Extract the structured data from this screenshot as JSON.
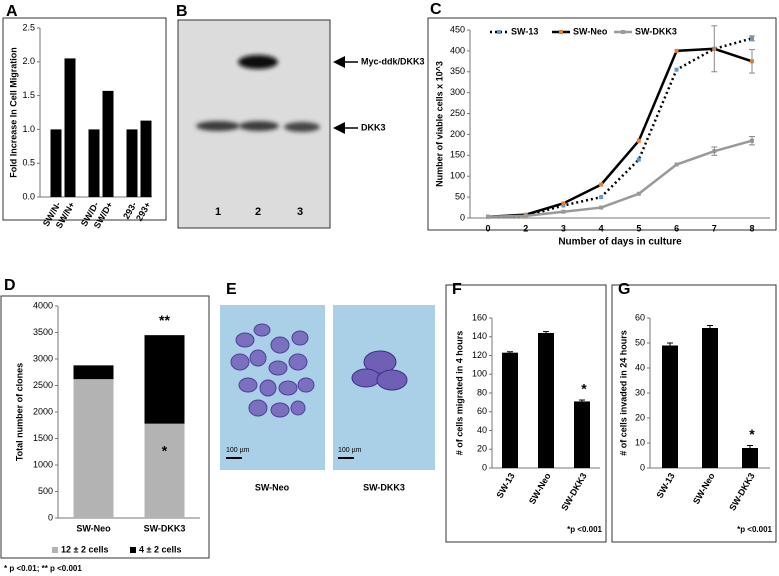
{
  "chart_data": [
    {
      "type": "bar",
      "panel": "A",
      "ylabel": "Fold Increase In Cell Migration",
      "categories": [
        "SW/N-",
        "SW/N+",
        "SW/D-",
        "SW/D+",
        "293-",
        "293+"
      ],
      "values": [
        1.0,
        2.05,
        1.0,
        1.57,
        1.0,
        1.13
      ],
      "color": "#000000",
      "ylim": [
        0,
        2.5
      ],
      "yticks": [
        {
          "value": 0,
          "label": "0.0"
        },
        0.5,
        {
          "value": 1,
          "label": "1.0"
        },
        1.5,
        {
          "value": 2,
          "label": "2.0"
        },
        2.5
      ]
    },
    {
      "type": "line",
      "panel": "C",
      "ylabel": "Number of viable cells x 10^3",
      "xlabel": "Number of days in culture",
      "categories": [
        "0",
        "2",
        "3",
        "4",
        "5",
        "6",
        "7",
        "8"
      ],
      "series": [
        {
          "name": "SW-13",
          "color": "#000000",
          "marker_color": "#5b9bd5",
          "dash": true,
          "values": [
            3,
            5,
            30,
            50,
            140,
            355,
            405,
            430
          ],
          "errors": [
            null,
            null,
            null,
            null,
            null,
            null,
            null,
            6
          ]
        },
        {
          "name": "SW-Neo",
          "color": "#000000",
          "marker_color": "#ed7d31",
          "dash": false,
          "values": [
            3,
            8,
            35,
            80,
            185,
            400,
            405,
            375
          ],
          "errors": [
            null,
            null,
            null,
            null,
            null,
            null,
            55,
            28
          ]
        },
        {
          "name": "SW-DKK3",
          "color": "#999999",
          "marker_color": "#999999",
          "dash": false,
          "values": [
            3,
            5,
            15,
            25,
            58,
            128,
            160,
            185
          ],
          "errors": [
            null,
            null,
            null,
            null,
            null,
            null,
            10,
            10
          ]
        }
      ],
      "ylim": [
        0,
        450
      ],
      "yticks": [
        0,
        50,
        100,
        150,
        200,
        250,
        300,
        350,
        400,
        450
      ]
    },
    {
      "type": "stacked-bar",
      "panel": "D",
      "ylabel": "Total number of clones",
      "categories": [
        "SW-Neo",
        "SW-DKK3"
      ],
      "series": [
        {
          "name": "12 ± 2 cells",
          "color": "#b3b3b3",
          "values": [
            2620,
            1780
          ]
        },
        {
          "name": "4 ± 2 cells",
          "color": "#000000",
          "values": [
            260,
            1670
          ]
        }
      ],
      "annotations": [
        "**",
        "*"
      ],
      "footnote": "* p <0.01; ** p <0.001",
      "ylim": [
        0,
        4000
      ],
      "yticks": [
        0,
        500,
        1000,
        1500,
        2000,
        2500,
        3000,
        3500,
        4000
      ]
    },
    {
      "type": "bar",
      "panel": "F",
      "ylabel": "# of cells migrated in 4 hours",
      "categories": [
        "SW-13",
        "SW-Neo",
        "SW-DKK3"
      ],
      "values": [
        123,
        144,
        71
      ],
      "errors": [
        1,
        1.5,
        1.5
      ],
      "color": "#000000",
      "annotation": "*",
      "footnote": "*p <0.001",
      "ylim": [
        0,
        160
      ],
      "yticks": [
        0,
        20,
        40,
        60,
        80,
        100,
        120,
        140,
        160
      ]
    },
    {
      "type": "bar",
      "panel": "G",
      "ylabel": "# of cells invaded in 24 hours",
      "categories": [
        "SW-13",
        "SW-Neo",
        "SW-DKK3"
      ],
      "values": [
        49,
        56,
        8
      ],
      "errors": [
        1,
        1,
        1
      ],
      "color": "#000000",
      "annotation": "*",
      "footnote": "*p <0.001",
      "ylim": [
        0,
        60
      ],
      "yticks": [
        0,
        10,
        20,
        30,
        40,
        50,
        60
      ]
    }
  ],
  "blot": {
    "panel": "B",
    "bands": [
      "Myc-ddk/DKK3",
      "DKK3"
    ],
    "lanes": [
      "1",
      "2",
      "3"
    ]
  },
  "micrographs": {
    "panel": "E",
    "images": [
      {
        "label": "SW-Neo",
        "scale": "100 µm"
      },
      {
        "label": "SW-DKK3",
        "scale": "100 µm"
      }
    ]
  }
}
